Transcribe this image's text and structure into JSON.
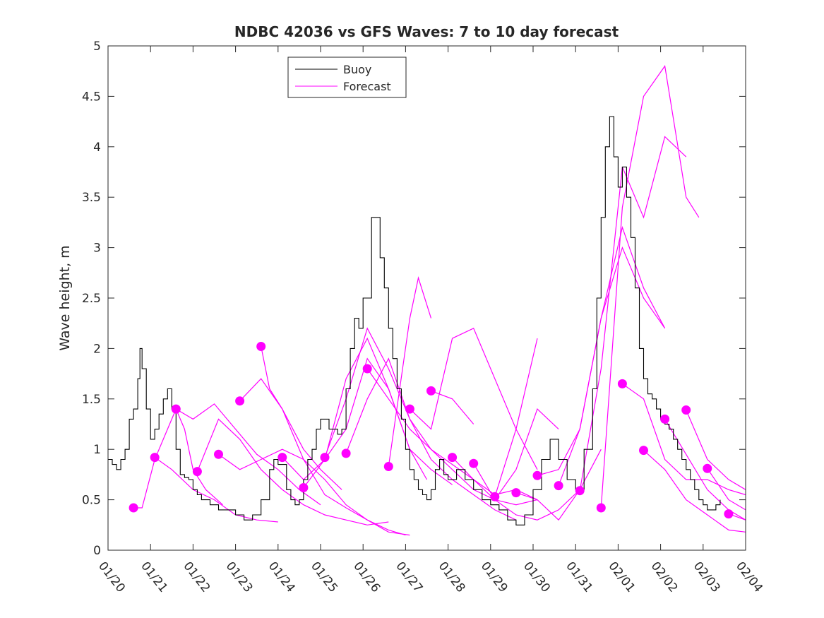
{
  "chart_data": {
    "type": "line",
    "title": "NDBC 42036 vs GFS Waves: 7 to 10 day forecast",
    "xlabel": "",
    "ylabel": "Wave height, m",
    "xlim": [
      0,
      15
    ],
    "ylim": [
      0,
      5
    ],
    "x_tick_values": [
      0,
      1,
      2,
      3,
      4,
      5,
      6,
      7,
      8,
      9,
      10,
      11,
      12,
      13,
      14,
      15
    ],
    "x_tick_labels": [
      "01/20",
      "01/21",
      "01/22",
      "01/23",
      "01/24",
      "01/25",
      "01/26",
      "01/27",
      "01/28",
      "01/29",
      "01/30",
      "01/31",
      "02/01",
      "02/02",
      "02/03",
      "02/04"
    ],
    "y_tick_values": [
      0,
      0.5,
      1,
      1.5,
      2,
      2.5,
      3,
      3.5,
      4,
      4.5,
      5
    ],
    "y_tick_labels": [
      "0",
      "0.5",
      "1",
      "1.5",
      "2",
      "2.5",
      "3",
      "3.5",
      "4",
      "4.5",
      "5"
    ],
    "grid": false,
    "legend": {
      "position": "top-center",
      "entries": [
        {
          "label": "Buoy",
          "color": "#000000"
        },
        {
          "label": "Forecast",
          "color": "#ff00ff"
        }
      ]
    },
    "colors": {
      "buoy": "#000000",
      "forecast": "#ff00ff",
      "axis": "#262626"
    },
    "buoy": {
      "name": "Buoy",
      "x": [
        0,
        0.1,
        0.2,
        0.3,
        0.4,
        0.5,
        0.6,
        0.7,
        0.75,
        0.8,
        0.9,
        1.0,
        1.1,
        1.2,
        1.3,
        1.4,
        1.5,
        1.6,
        1.7,
        1.8,
        1.9,
        2.0,
        2.1,
        2.2,
        2.4,
        2.6,
        2.8,
        3.0,
        3.2,
        3.4,
        3.6,
        3.8,
        3.9,
        4.0,
        4.2,
        4.3,
        4.4,
        4.5,
        4.6,
        4.7,
        4.8,
        4.9,
        5.0,
        5.2,
        5.4,
        5.5,
        5.6,
        5.7,
        5.8,
        5.9,
        6.0,
        6.2,
        6.4,
        6.5,
        6.6,
        6.7,
        6.8,
        6.9,
        7.0,
        7.1,
        7.2,
        7.3,
        7.4,
        7.5,
        7.6,
        7.7,
        7.8,
        7.9,
        8.0,
        8.2,
        8.4,
        8.6,
        8.8,
        9.0,
        9.2,
        9.4,
        9.6,
        9.8,
        10.0,
        10.2,
        10.4,
        10.6,
        10.8,
        11.0,
        11.2,
        11.4,
        11.5,
        11.6,
        11.7,
        11.8,
        11.9,
        12.0,
        12.1,
        12.2,
        12.3,
        12.4,
        12.5,
        12.6,
        12.7,
        12.8,
        12.9,
        13.0,
        13.1,
        13.2,
        13.3,
        13.4,
        13.5,
        13.6,
        13.7,
        13.8,
        13.9,
        14.0,
        14.1,
        14.2,
        14.3,
        14.4
      ],
      "y": [
        0.9,
        0.85,
        0.8,
        0.9,
        1.0,
        1.3,
        1.4,
        1.7,
        2.0,
        1.8,
        1.4,
        1.1,
        1.2,
        1.35,
        1.5,
        1.6,
        1.4,
        1.0,
        0.75,
        0.72,
        0.7,
        0.6,
        0.55,
        0.5,
        0.45,
        0.4,
        0.4,
        0.35,
        0.3,
        0.35,
        0.5,
        0.8,
        0.9,
        0.85,
        0.6,
        0.5,
        0.45,
        0.5,
        0.7,
        0.9,
        1.0,
        1.2,
        1.3,
        1.2,
        1.15,
        1.2,
        1.6,
        2.0,
        2.3,
        2.2,
        2.5,
        3.3,
        2.9,
        2.6,
        2.2,
        1.9,
        1.6,
        1.3,
        1.0,
        0.8,
        0.7,
        0.6,
        0.55,
        0.5,
        0.6,
        0.8,
        0.9,
        0.75,
        0.7,
        0.8,
        0.7,
        0.6,
        0.5,
        0.45,
        0.4,
        0.3,
        0.25,
        0.35,
        0.6,
        0.9,
        1.1,
        0.9,
        0.7,
        0.6,
        1.0,
        1.6,
        2.5,
        3.3,
        4.0,
        4.3,
        3.9,
        3.6,
        3.8,
        3.5,
        3.1,
        2.6,
        2.0,
        1.7,
        1.55,
        1.5,
        1.4,
        1.3,
        1.25,
        1.2,
        1.1,
        1.0,
        0.9,
        0.8,
        0.7,
        0.6,
        0.5,
        0.45,
        0.4,
        0.4,
        0.45,
        0.5
      ]
    },
    "forecast_series": [
      {
        "x": [
          0.6,
          0.8,
          1.1,
          1.6,
          1.8,
          2.0,
          2.3,
          2.7
        ],
        "y": [
          0.42,
          0.42,
          0.9,
          1.4,
          1.2,
          0.8,
          0.6,
          0.45
        ]
      },
      {
        "x": [
          1.1,
          1.5,
          2.0,
          2.5,
          3.0,
          3.5,
          4.0
        ],
        "y": [
          0.92,
          0.8,
          0.6,
          0.5,
          0.35,
          0.3,
          0.28
        ]
      },
      {
        "x": [
          1.6,
          2.0,
          2.5,
          3.0,
          3.5,
          4.0,
          4.5,
          5.0
        ],
        "y": [
          1.4,
          1.3,
          1.45,
          1.2,
          0.95,
          0.8,
          0.6,
          0.45
        ]
      },
      {
        "x": [
          2.1,
          2.6,
          3.1,
          3.6,
          4.1,
          4.6,
          5.1,
          5.6,
          6.1,
          6.6
        ],
        "y": [
          0.78,
          1.3,
          1.1,
          0.8,
          0.6,
          0.45,
          0.35,
          0.3,
          0.25,
          0.28
        ]
      },
      {
        "x": [
          2.6,
          3.1,
          3.6,
          4.1,
          4.6,
          5.1,
          5.6,
          6.1,
          6.6,
          7.1
        ],
        "y": [
          0.95,
          0.8,
          0.9,
          1.0,
          0.9,
          0.7,
          0.45,
          0.3,
          0.18,
          0.15
        ]
      },
      {
        "x": [
          3.1,
          3.6,
          4.1,
          4.6,
          5.1,
          5.6,
          6.1,
          6.6,
          7.0
        ],
        "y": [
          1.48,
          1.7,
          1.4,
          0.9,
          0.55,
          0.42,
          0.3,
          0.2,
          0.15
        ]
      },
      {
        "x": [
          3.6,
          3.8,
          4.1,
          4.6,
          5.0,
          5.5
        ],
        "y": [
          2.02,
          1.6,
          1.4,
          1.0,
          0.8,
          0.6
        ]
      },
      {
        "x": [
          4.1,
          4.6,
          5.1,
          5.6,
          6.1,
          6.6,
          7.1,
          7.6,
          8.1
        ],
        "y": [
          0.92,
          0.7,
          0.9,
          1.7,
          2.1,
          1.6,
          1.0,
          0.8,
          0.65
        ]
      },
      {
        "x": [
          4.6,
          5.1,
          5.6,
          6.1,
          6.6,
          7.1,
          7.5
        ],
        "y": [
          0.62,
          0.9,
          1.2,
          1.9,
          1.6,
          1.0,
          0.7
        ]
      },
      {
        "x": [
          5.1,
          5.6,
          6.1,
          6.6,
          7.1,
          7.6,
          8.1,
          8.6,
          9.1,
          9.6
        ],
        "y": [
          0.92,
          1.5,
          2.2,
          1.8,
          1.3,
          0.9,
          0.7,
          0.55,
          0.4,
          0.3
        ]
      },
      {
        "x": [
          5.6,
          6.1,
          6.6,
          7.1,
          7.6,
          8.1,
          8.6,
          9.1,
          9.6,
          10.1
        ],
        "y": [
          0.96,
          1.5,
          1.9,
          1.3,
          1.0,
          0.8,
          0.6,
          0.5,
          0.45,
          0.5
        ]
      },
      {
        "x": [
          6.1,
          6.6,
          7.1,
          7.6,
          8.1,
          8.6,
          9.1,
          9.6,
          10.1
        ],
        "y": [
          1.8,
          1.5,
          1.2,
          1.0,
          0.85,
          0.7,
          0.55,
          0.6,
          0.5
        ]
      },
      {
        "x": [
          6.6,
          7.1,
          7.3,
          7.6
        ],
        "y": [
          0.83,
          2.3,
          2.7,
          2.3
        ]
      },
      {
        "x": [
          7.1,
          7.6,
          8.1,
          8.6,
          9.1,
          9.6,
          10.1
        ],
        "y": [
          1.4,
          1.2,
          2.1,
          2.2,
          1.7,
          1.2,
          0.8
        ]
      },
      {
        "x": [
          7.6,
          8.1,
          8.6
        ],
        "y": [
          1.58,
          1.5,
          1.25
        ]
      },
      {
        "x": [
          8.1,
          8.6,
          9.1,
          9.6,
          10.1,
          10.6
        ],
        "y": [
          0.92,
          0.7,
          0.5,
          0.8,
          1.4,
          1.2
        ]
      },
      {
        "x": [
          8.6,
          9.1,
          9.6,
          10.1,
          10.6,
          11.1
        ],
        "y": [
          0.86,
          0.5,
          0.35,
          0.3,
          0.4,
          0.6
        ]
      },
      {
        "x": [
          9.1,
          9.6,
          10.1
        ],
        "y": [
          0.53,
          1.2,
          2.1
        ]
      },
      {
        "x": [
          9.6,
          10.1,
          10.6,
          11.1,
          11.6
        ],
        "y": [
          0.57,
          0.5,
          0.3,
          0.6,
          1.0
        ]
      },
      {
        "x": [
          10.1,
          10.6,
          11.1,
          11.6,
          12.1,
          12.6,
          13.1
        ],
        "y": [
          0.74,
          0.8,
          1.2,
          2.3,
          3.0,
          2.5,
          2.2
        ]
      },
      {
        "x": [
          10.6,
          11.1,
          11.6,
          12.1,
          12.6,
          13.1
        ],
        "y": [
          0.64,
          1.2,
          2.3,
          3.2,
          2.6,
          2.2
        ]
      },
      {
        "x": [
          11.1,
          11.6,
          12.1,
          12.6,
          13.1,
          13.6
        ],
        "y": [
          0.59,
          1.8,
          3.8,
          3.3,
          4.1,
          3.9
        ]
      },
      {
        "x": [
          11.6,
          12.1,
          12.6,
          13.1,
          13.6,
          13.9
        ],
        "y": [
          0.42,
          3.4,
          4.5,
          4.8,
          3.5,
          3.3
        ]
      },
      {
        "x": [
          12.1,
          12.6,
          13.1,
          13.6,
          14.1,
          14.6,
          15.0
        ],
        "y": [
          1.65,
          1.5,
          0.9,
          0.7,
          0.7,
          0.6,
          0.55
        ]
      },
      {
        "x": [
          12.6,
          13.1,
          13.6,
          14.1,
          14.6,
          15.0
        ],
        "y": [
          0.99,
          0.8,
          0.5,
          0.35,
          0.2,
          0.18
        ]
      },
      {
        "x": [
          13.1,
          13.6,
          14.1,
          14.6,
          15.0
        ],
        "y": [
          1.3,
          0.95,
          0.6,
          0.4,
          0.3
        ]
      },
      {
        "x": [
          13.6,
          14.1,
          14.6,
          15.0
        ],
        "y": [
          1.39,
          0.9,
          0.7,
          0.6
        ]
      },
      {
        "x": [
          14.1,
          14.6,
          15.0
        ],
        "y": [
          0.81,
          0.5,
          0.4
        ]
      },
      {
        "x": [
          14.6,
          15.0
        ],
        "y": [
          0.36,
          0.3
        ]
      }
    ],
    "forecast_markers": {
      "x": [
        0.6,
        1.1,
        1.6,
        2.1,
        2.6,
        3.1,
        3.6,
        4.1,
        4.6,
        5.1,
        5.6,
        6.1,
        6.6,
        7.1,
        7.6,
        8.1,
        8.6,
        9.1,
        9.6,
        10.1,
        10.6,
        11.1,
        11.6,
        12.1,
        12.6,
        13.1,
        13.6,
        14.1,
        14.6
      ],
      "y": [
        0.42,
        0.92,
        1.4,
        0.78,
        0.95,
        1.48,
        2.02,
        0.92,
        0.62,
        0.92,
        0.96,
        1.8,
        0.83,
        1.4,
        1.58,
        0.92,
        0.86,
        0.53,
        0.57,
        0.74,
        0.64,
        0.59,
        0.42,
        1.65,
        0.99,
        1.3,
        1.39,
        0.81,
        0.36
      ]
    }
  }
}
